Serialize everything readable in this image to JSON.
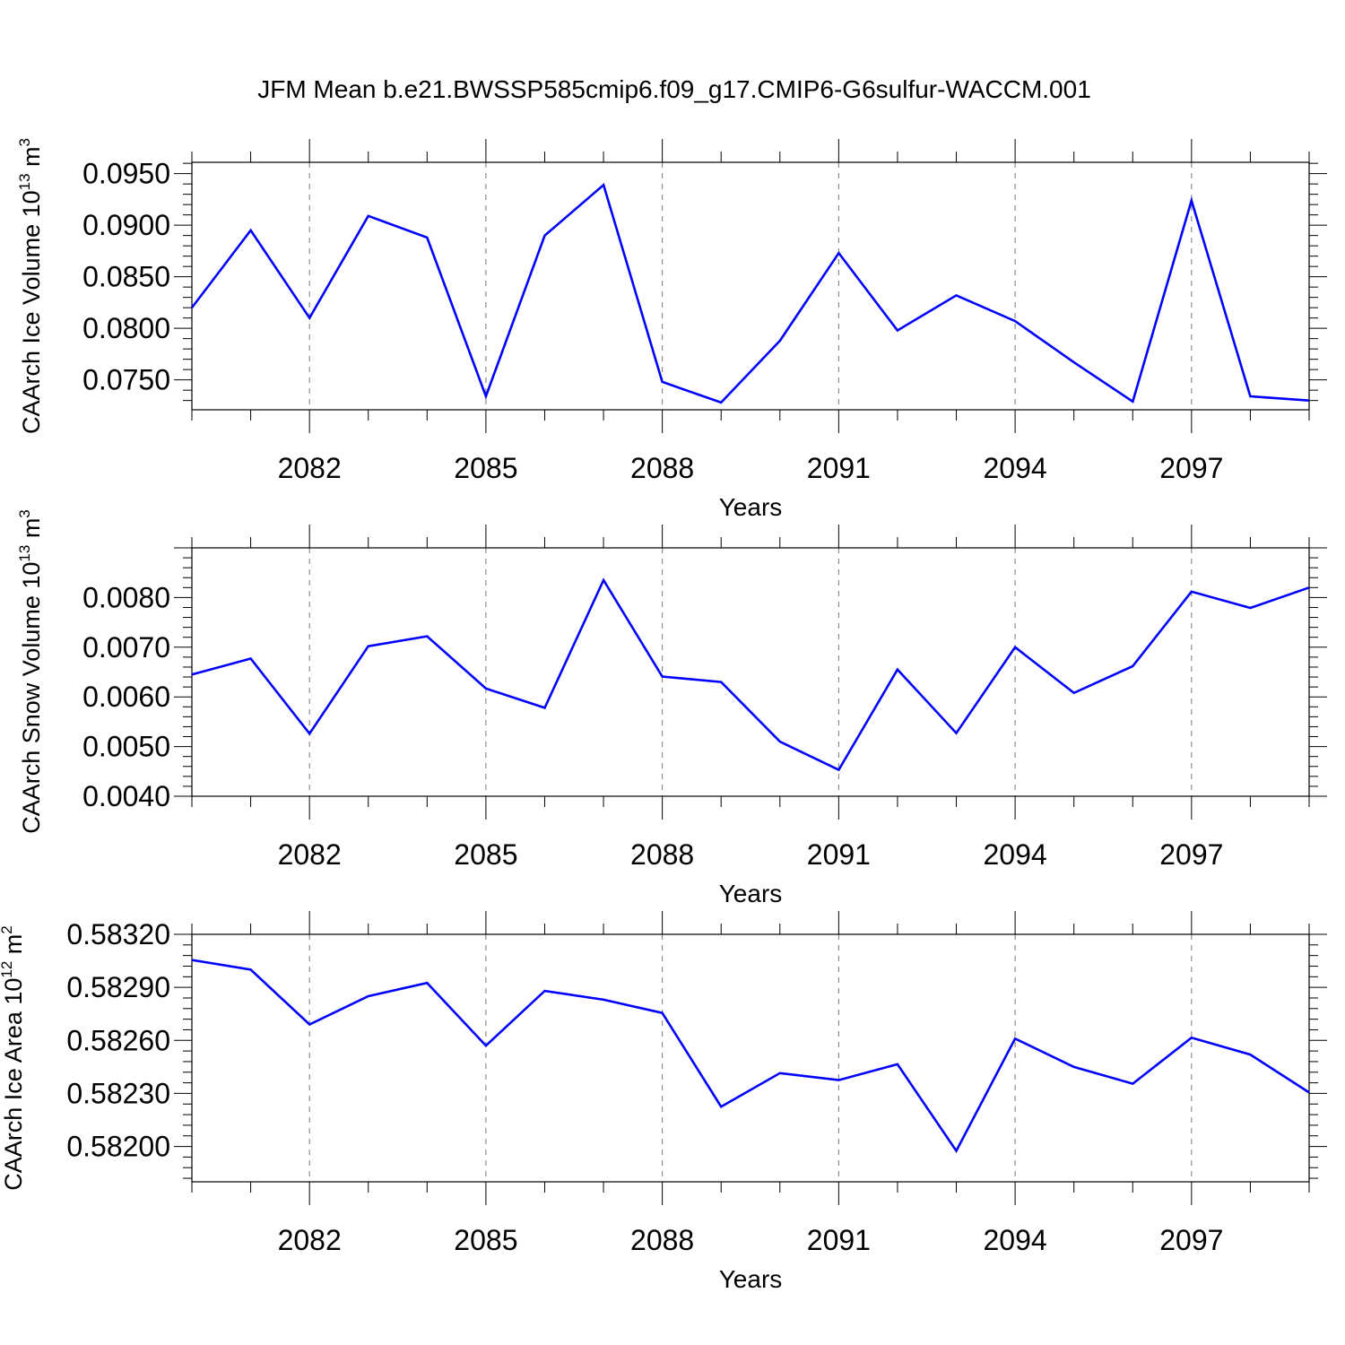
{
  "title": "JFM Mean b.e21.BWSSP585cmip6.f09_g17.CMIP6-G6sulfur-WACCM.001",
  "line_color": "#0000ff",
  "chart_data": [
    {
      "type": "line",
      "title": "JFM Mean b.e21.BWSSP585cmip6.f09_g17.CMIP6-G6sulfur-WACCM.001",
      "xlabel": "Years",
      "ylabel": {
        "text": "CAArch Ice Volume 10",
        "sup": "13",
        "unit": " m",
        "unit_sup": "3"
      },
      "x_ticks": [
        "2082",
        "2085",
        "2088",
        "2091",
        "2094",
        "2097"
      ],
      "xlim": [
        2080,
        2099
      ],
      "y_ticks": [
        "0.0750",
        "0.0800",
        "0.0850",
        "0.0900",
        "0.0950"
      ],
      "ylim": [
        0.0721,
        0.0961
      ],
      "grid": "vertical dashed at labeled years",
      "series": [
        {
          "x": [
            2080,
            2081,
            2082,
            2083,
            2084,
            2085,
            2086,
            2087,
            2088,
            2089,
            2090,
            2091,
            2092,
            2093,
            2094,
            2095,
            2096,
            2097,
            2098,
            2099
          ],
          "values": [
            0.082,
            0.0895,
            0.081,
            0.0909,
            0.0888,
            0.0734,
            0.089,
            0.0939,
            0.0748,
            0.0728,
            0.0788,
            0.0873,
            0.0798,
            0.0832,
            0.0807,
            0.0767,
            0.0729,
            0.0924,
            0.0734,
            0.073
          ]
        }
      ]
    },
    {
      "type": "line",
      "xlabel": "Years",
      "ylabel": {
        "text": "CAArch Snow Volume 10",
        "sup": "13",
        "unit": " m",
        "unit_sup": "3"
      },
      "x_ticks": [
        "2082",
        "2085",
        "2088",
        "2091",
        "2094",
        "2097"
      ],
      "xlim": [
        2080,
        2099
      ],
      "y_ticks": [
        "0.0040",
        "0.0050",
        "0.0060",
        "0.0070",
        "0.0080"
      ],
      "ylim": [
        0.004,
        0.009
      ],
      "grid": "vertical dashed at labeled years",
      "series": [
        {
          "x": [
            2080,
            2081,
            2082,
            2083,
            2084,
            2085,
            2086,
            2087,
            2088,
            2089,
            2090,
            2091,
            2092,
            2093,
            2094,
            2095,
            2096,
            2097,
            2098,
            2099
          ],
          "values": [
            0.00645,
            0.00677,
            0.00526,
            0.00702,
            0.00722,
            0.00617,
            0.00578,
            0.00835,
            0.00641,
            0.0063,
            0.0051,
            0.00453,
            0.00655,
            0.00527,
            0.007,
            0.00608,
            0.00662,
            0.00812,
            0.00779,
            0.0082
          ]
        }
      ]
    },
    {
      "type": "line",
      "xlabel": "Years",
      "ylabel": {
        "text": "CAArch Ice Area 10",
        "sup": "12",
        "unit": " m",
        "unit_sup": "2"
      },
      "x_ticks": [
        "2082",
        "2085",
        "2088",
        "2091",
        "2094",
        "2097"
      ],
      "xlim": [
        2080,
        2099
      ],
      "y_ticks": [
        "0.58200",
        "0.58230",
        "0.58260",
        "0.58290",
        "0.58320"
      ],
      "ylim": [
        0.5818,
        0.5832
      ],
      "grid": "vertical dashed at labeled years",
      "series": [
        {
          "x": [
            2080,
            2081,
            2082,
            2083,
            2084,
            2085,
            2086,
            2087,
            2088,
            2089,
            2090,
            2091,
            2092,
            2093,
            2094,
            2095,
            2096,
            2097,
            2098,
            2099
          ],
          "values": [
            0.583055,
            0.583,
            0.58269,
            0.58285,
            0.582925,
            0.58257,
            0.58288,
            0.58283,
            0.582755,
            0.582225,
            0.582415,
            0.582375,
            0.582465,
            0.581975,
            0.58261,
            0.58245,
            0.582355,
            0.582615,
            0.58252,
            0.582305
          ]
        }
      ]
    }
  ]
}
